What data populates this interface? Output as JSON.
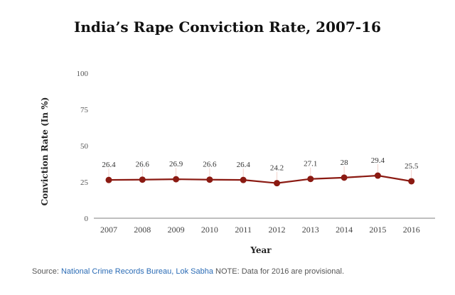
{
  "chart_data": {
    "type": "line",
    "title": "India’s Rape Conviction Rate, 2007-16",
    "xlabel": "Year",
    "ylabel": "Conviction Rate (In %)",
    "categories": [
      "2007",
      "2008",
      "2009",
      "2010",
      "2011",
      "2012",
      "2013",
      "2014",
      "2015",
      "2016"
    ],
    "values": [
      26.4,
      26.6,
      26.9,
      26.6,
      26.4,
      24.2,
      27.1,
      28,
      29.4,
      25.5
    ],
    "data_labels": [
      "26.4",
      "26.6",
      "26.9",
      "26.6",
      "26.4",
      "24.2",
      "27.1",
      "28",
      "29.4",
      "25.5"
    ],
    "ylim": [
      0,
      100
    ],
    "yticks": [
      "0",
      "25",
      "50",
      "75",
      "100"
    ],
    "grid": false,
    "line_color": "#8b1a12"
  },
  "source": {
    "prefix": "Source: ",
    "link": "National Crime Records Bureau, Lok Sabha",
    "note": " NOTE: Data for 2016 are provisional."
  }
}
